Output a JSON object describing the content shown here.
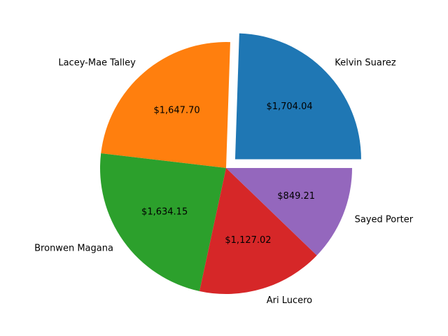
{
  "chart_data": {
    "type": "pie",
    "title": "",
    "labels": [
      "Kelvin Suarez",
      "Lacey-Mae Talley",
      "Bronwen Magana",
      "Ari Lucero",
      "Sayed Porter"
    ],
    "values": [
      1704.04,
      1647.7,
      1634.15,
      1127.02,
      849.21
    ],
    "value_labels": [
      "$1,704.04",
      "$1,647.70",
      "$1,634.15",
      "$1,127.02",
      "$849.21"
    ],
    "colors": [
      "#1f77b4",
      "#ff7f0e",
      "#2ca02c",
      "#d62728",
      "#9467bd"
    ],
    "exploded": [
      "Kelvin Suarez"
    ],
    "start_angle": "0 degrees (east)",
    "direction": "counterclockwise",
    "legend": "none"
  }
}
